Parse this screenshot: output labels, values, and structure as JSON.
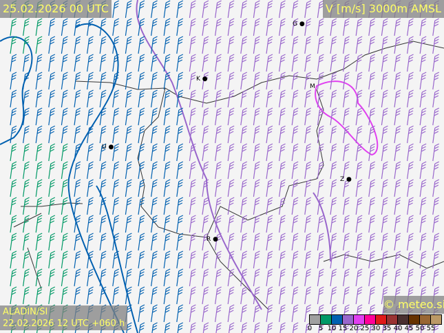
{
  "header": {
    "valid_time": "25.02.2026 00 UTC",
    "variable": "V [m/s] 3000m AMSL"
  },
  "model": {
    "name": "ALADIN/SI",
    "run": "22.02.2026 12 UTC +060 h"
  },
  "copyright": "© meteo.si",
  "legend": {
    "ticks": [
      "0",
      "5",
      "10",
      "15",
      "20",
      "25",
      "30",
      "35",
      "40",
      "45",
      "50",
      "55"
    ],
    "colors": [
      "#a0a0a0",
      "#009966",
      "#0060b0",
      "#9966cc",
      "#e040f0",
      "#ff0099",
      "#e01a1a",
      "#993333",
      "#4a3030",
      "#663300",
      "#996633",
      "#bb9966"
    ]
  },
  "cities": [
    {
      "label": "G"
    },
    {
      "label": "K"
    },
    {
      "label": "M"
    },
    {
      "label": "U"
    },
    {
      "label": "Z"
    },
    {
      "label": "R"
    }
  ],
  "barb_colors": {
    "green": "#009966",
    "blue": "#0060b0",
    "purple": "#9966cc",
    "magenta": "#e040f0"
  }
}
